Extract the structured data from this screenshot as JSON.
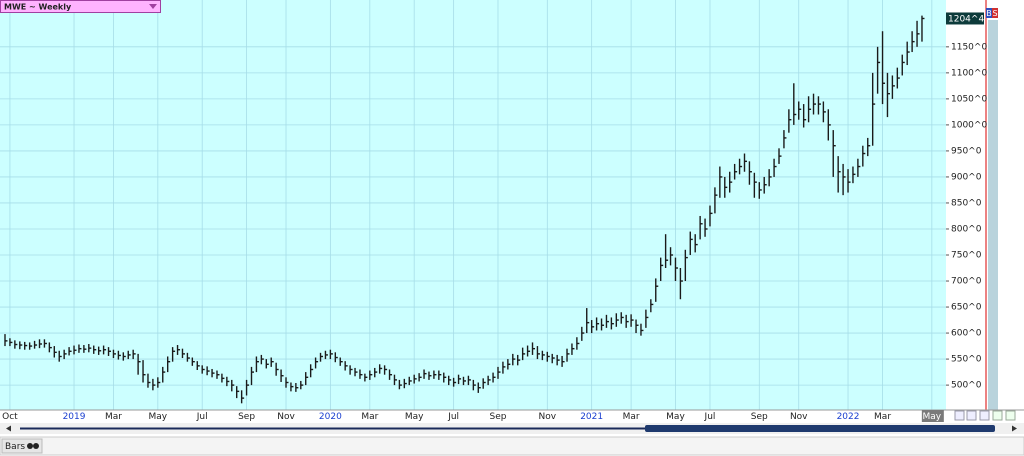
{
  "chart_data": {
    "type": "hlc",
    "title": "MWE ~ Weekly",
    "color": "#1a1a1a",
    "grid": true,
    "categories": [
      null,
      "Oct",
      null,
      null,
      null,
      null,
      null,
      null,
      null,
      null,
      null,
      null,
      null,
      null,
      "2019",
      null,
      null,
      null,
      null,
      null,
      null,
      null,
      "Mar",
      null,
      null,
      null,
      null,
      null,
      null,
      null,
      null,
      "May",
      null,
      null,
      null,
      null,
      null,
      null,
      null,
      null,
      "Jul",
      null,
      null,
      null,
      null,
      null,
      null,
      null,
      null,
      "Sep",
      null,
      null,
      null,
      null,
      null,
      null,
      null,
      "Nov",
      null,
      null,
      null,
      null,
      null,
      null,
      null,
      null,
      "2020",
      null,
      null,
      null,
      null,
      null,
      null,
      null,
      "Mar",
      null,
      null,
      null,
      null,
      null,
      null,
      null,
      null,
      "May",
      null,
      null,
      null,
      null,
      null,
      null,
      null,
      "Jul",
      null,
      null,
      null,
      null,
      null,
      null,
      null,
      null,
      "Sep",
      null,
      null,
      null,
      null,
      null,
      null,
      null,
      null,
      null,
      "Nov",
      null,
      null,
      null,
      null,
      null,
      null,
      null,
      null,
      "2021",
      null,
      null,
      null,
      null,
      null,
      null,
      null,
      "Mar",
      null,
      null,
      null,
      null,
      null,
      null,
      null,
      null,
      "May",
      null,
      null,
      null,
      null,
      null,
      null,
      "Jul",
      null,
      null,
      null,
      null,
      null,
      null,
      null,
      null,
      null,
      "Sep",
      null,
      null,
      null,
      null,
      null,
      null,
      null,
      "Nov",
      null,
      null,
      null,
      null,
      null,
      null,
      null,
      null,
      null,
      "2022",
      null,
      null,
      null,
      null,
      null,
      null,
      "Mar",
      null,
      null,
      null,
      null,
      null,
      null,
      null,
      null,
      null,
      "May"
    ],
    "high": [
      598,
      590,
      586,
      584,
      583,
      582,
      585,
      588,
      588,
      582,
      575,
      566,
      568,
      573,
      576,
      578,
      577,
      579,
      576,
      574,
      576,
      573,
      568,
      566,
      563,
      566,
      568,
      560,
      548,
      522,
      512,
      515,
      535,
      555,
      573,
      577,
      570,
      562,
      553,
      546,
      538,
      536,
      531,
      528,
      522,
      516,
      510,
      498,
      490,
      510,
      535,
      555,
      558,
      550,
      553,
      543,
      530,
      515,
      505,
      504,
      508,
      525,
      540,
      553,
      562,
      566,
      568,
      563,
      553,
      546,
      538,
      533,
      530,
      522,
      528,
      533,
      540,
      538,
      530,
      520,
      510,
      512,
      516,
      520,
      523,
      530,
      526,
      528,
      528,
      524,
      518,
      514,
      520,
      516,
      518,
      510,
      505,
      513,
      518,
      524,
      535,
      545,
      550,
      560,
      558,
      572,
      576,
      582,
      575,
      566,
      564,
      560,
      558,
      556,
      570,
      580,
      592,
      612,
      648,
      625,
      630,
      628,
      635,
      630,
      638,
      640,
      635,
      636,
      626,
      618,
      645,
      665,
      705,
      745,
      790,
      765,
      745,
      725,
      760,
      795,
      790,
      825,
      820,
      845,
      880,
      920,
      900,
      910,
      925,
      935,
      945,
      930,
      908,
      890,
      900,
      915,
      935,
      955,
      990,
      1030,
      1080,
      1045,
      1040,
      1055,
      1060,
      1055,
      1045,
      1030,
      990,
      940,
      925,
      915,
      920,
      935,
      960,
      975,
      1100,
      1150,
      1180,
      1100,
      1095,
      1110,
      1135,
      1160,
      1180,
      1200,
      1210,
      null,
      null
    ],
    "low": [
      575,
      575,
      570,
      569,
      568,
      568,
      570,
      571,
      572,
      563,
      553,
      545,
      550,
      557,
      559,
      562,
      562,
      563,
      560,
      558,
      559,
      556,
      552,
      549,
      547,
      550,
      550,
      520,
      505,
      495,
      490,
      495,
      505,
      525,
      545,
      558,
      552,
      545,
      537,
      529,
      522,
      519,
      515,
      512,
      505,
      498,
      488,
      475,
      465,
      480,
      500,
      525,
      540,
      532,
      535,
      518,
      506,
      495,
      488,
      487,
      492,
      500,
      515,
      532,
      545,
      550,
      550,
      544,
      537,
      528,
      520,
      517,
      512,
      507,
      510,
      515,
      522,
      520,
      510,
      500,
      492,
      494,
      500,
      503,
      507,
      512,
      510,
      512,
      510,
      505,
      500,
      497,
      502,
      500,
      500,
      490,
      485,
      493,
      500,
      505,
      512,
      522,
      530,
      538,
      538,
      548,
      555,
      558,
      550,
      548,
      545,
      542,
      538,
      535,
      545,
      558,
      568,
      585,
      600,
      600,
      605,
      605,
      610,
      607,
      612,
      618,
      610,
      612,
      600,
      595,
      610,
      640,
      660,
      700,
      725,
      730,
      700,
      665,
      700,
      750,
      755,
      780,
      785,
      805,
      830,
      860,
      860,
      870,
      895,
      905,
      910,
      885,
      860,
      858,
      868,
      882,
      900,
      925,
      955,
      985,
      1000,
      1010,
      995,
      1005,
      1020,
      1020,
      1005,
      970,
      900,
      870,
      865,
      870,
      888,
      900,
      920,
      940,
      960,
      1060,
      1040,
      1015,
      1050,
      1070,
      1095,
      1115,
      1140,
      1150,
      1160,
      null,
      null
    ],
    "close": [
      585,
      582,
      578,
      577,
      576,
      575,
      577,
      579,
      580,
      572,
      563,
      555,
      560,
      565,
      567,
      570,
      569,
      571,
      568,
      566,
      568,
      565,
      560,
      557,
      555,
      558,
      560,
      545,
      520,
      505,
      500,
      505,
      525,
      545,
      565,
      568,
      560,
      552,
      545,
      537,
      530,
      527,
      523,
      520,
      513,
      507,
      500,
      488,
      475,
      500,
      525,
      545,
      550,
      540,
      545,
      530,
      518,
      505,
      497,
      495,
      500,
      515,
      530,
      545,
      555,
      558,
      560,
      553,
      545,
      537,
      530,
      525,
      520,
      515,
      520,
      525,
      532,
      530,
      520,
      510,
      500,
      503,
      508,
      512,
      515,
      522,
      518,
      520,
      520,
      515,
      510,
      505,
      512,
      508,
      510,
      500,
      495,
      505,
      510,
      515,
      525,
      535,
      540,
      550,
      548,
      560,
      565,
      570,
      560,
      558,
      555,
      552,
      548,
      545,
      560,
      570,
      580,
      600,
      620,
      612,
      618,
      615,
      622,
      618,
      625,
      630,
      622,
      625,
      615,
      605,
      630,
      655,
      690,
      730,
      740,
      750,
      725,
      700,
      745,
      780,
      770,
      810,
      800,
      830,
      865,
      900,
      880,
      890,
      910,
      920,
      930,
      910,
      890,
      875,
      885,
      900,
      920,
      940,
      975,
      1010,
      1020,
      1030,
      1010,
      1030,
      1040,
      1040,
      1025,
      1000,
      960,
      910,
      900,
      890,
      905,
      920,
      945,
      960,
      1040,
      1120,
      1080,
      1060,
      1075,
      1090,
      1120,
      1140,
      1160,
      1175,
      1204.5,
      null,
      null
    ],
    "ylim": [
      456,
      1240
    ],
    "yticks": [
      {
        "value": 500,
        "label": "500^0"
      },
      {
        "value": 550,
        "label": "550^0"
      },
      {
        "value": 600,
        "label": "600^0"
      },
      {
        "value": 650,
        "label": "650^0"
      },
      {
        "value": 700,
        "label": "700^0"
      },
      {
        "value": 750,
        "label": "750^0"
      },
      {
        "value": 800,
        "label": "800^0"
      },
      {
        "value": 850,
        "label": "850^0"
      },
      {
        "value": 900,
        "label": "900^0"
      },
      {
        "value": 950,
        "label": "950^0"
      },
      {
        "value": 1000,
        "label": "1000^0"
      },
      {
        "value": 1050,
        "label": "1050^0"
      },
      {
        "value": 1100,
        "label": "1100^0"
      },
      {
        "value": 1150,
        "label": "1150^0"
      }
    ],
    "last_price": {
      "value": 1204.5,
      "label": "1204^4"
    }
  },
  "toolbar": {
    "buttons": [
      "B",
      "S"
    ],
    "chart_style": "Bars"
  }
}
